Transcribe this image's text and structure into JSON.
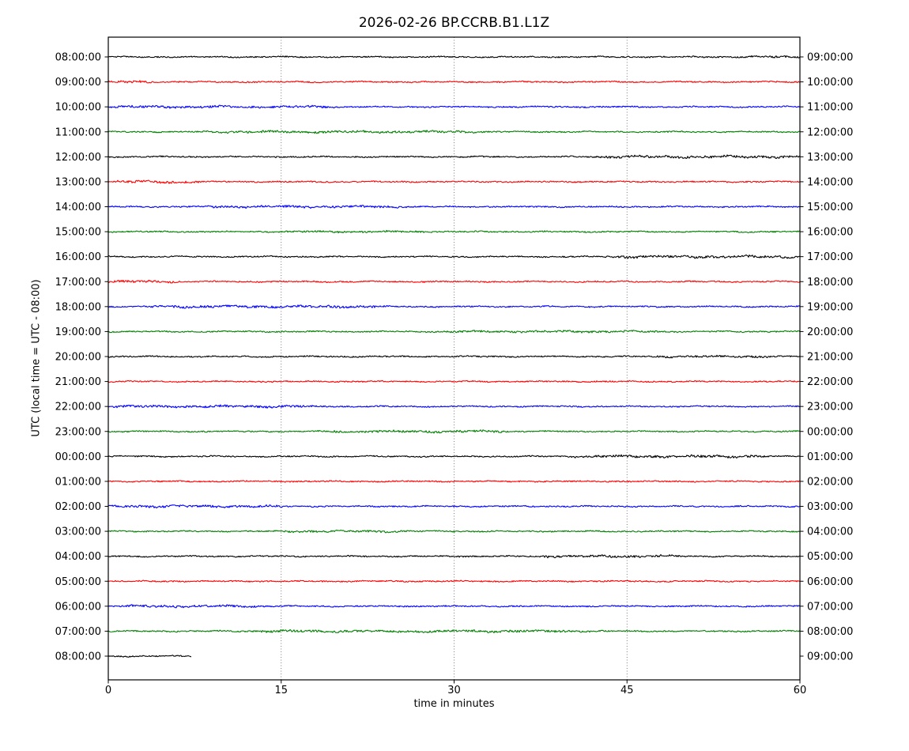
{
  "figure": {
    "title": "2026-02-26 BP.CCRB.B1.L1Z",
    "xlabel": "time in minutes",
    "ylabel": "UTC (local time = UTC - 08:00)"
  },
  "chart_data": {
    "type": "line",
    "subtype": "seismic-helicorder-dayplot",
    "title": "2026-02-26 BP.CCRB.B1.L1Z",
    "xlabel": "time in minutes",
    "ylabel": "UTC (local time = UTC - 08:00)",
    "xlim": [
      0,
      60
    ],
    "x_ticks": [
      0,
      15,
      30,
      45,
      60
    ],
    "grid": {
      "style": "dotted-vertical",
      "at_minutes": [
        15,
        30,
        45
      ]
    },
    "minutes_per_row": 60,
    "color_cycle": [
      "#000000",
      "#ff0000",
      "#0000ff",
      "#008000"
    ],
    "left_axis": "UTC start time of each line",
    "right_axis": "time at end of each line",
    "rows": [
      {
        "utc": "08:00:00",
        "local": "09:00:00",
        "color": "#000000",
        "start_min": 0,
        "end_min": 60,
        "bursts": [
          [
            55,
            60,
            1.7
          ]
        ]
      },
      {
        "utc": "09:00:00",
        "local": "10:00:00",
        "color": "#ff0000",
        "start_min": 0,
        "end_min": 60,
        "bursts": [
          [
            0,
            4,
            1.8
          ]
        ]
      },
      {
        "utc": "10:00:00",
        "local": "11:00:00",
        "color": "#0000ff",
        "start_min": 0,
        "end_min": 60,
        "bursts": [
          [
            0,
            20,
            1.7
          ]
        ]
      },
      {
        "utc": "11:00:00",
        "local": "12:00:00",
        "color": "#008000",
        "start_min": 0,
        "end_min": 60,
        "bursts": [
          [
            8,
            32,
            1.7
          ]
        ]
      },
      {
        "utc": "12:00:00",
        "local": "13:00:00",
        "color": "#000000",
        "start_min": 0,
        "end_min": 60,
        "bursts": [
          [
            42,
            60,
            1.9
          ]
        ]
      },
      {
        "utc": "13:00:00",
        "local": "14:00:00",
        "color": "#ff0000",
        "start_min": 0,
        "end_min": 60,
        "bursts": [
          [
            0,
            8,
            2.0
          ]
        ]
      },
      {
        "utc": "14:00:00",
        "local": "15:00:00",
        "color": "#0000ff",
        "start_min": 0,
        "end_min": 60,
        "bursts": [
          [
            8,
            26,
            1.7
          ]
        ]
      },
      {
        "utc": "15:00:00",
        "local": "16:00:00",
        "color": "#008000",
        "start_min": 0,
        "end_min": 60,
        "bursts": [
          [
            15,
            28,
            1.4
          ]
        ]
      },
      {
        "utc": "16:00:00",
        "local": "17:00:00",
        "color": "#000000",
        "start_min": 0,
        "end_min": 60,
        "bursts": [
          [
            43,
            60,
            1.9
          ]
        ]
      },
      {
        "utc": "17:00:00",
        "local": "18:00:00",
        "color": "#ff0000",
        "start_min": 0,
        "end_min": 60,
        "bursts": [
          [
            0,
            6,
            1.9
          ]
        ]
      },
      {
        "utc": "18:00:00",
        "local": "19:00:00",
        "color": "#0000ff",
        "start_min": 0,
        "end_min": 60,
        "bursts": [
          [
            3,
            24,
            1.8
          ]
        ]
      },
      {
        "utc": "19:00:00",
        "local": "20:00:00",
        "color": "#008000",
        "start_min": 0,
        "end_min": 60,
        "bursts": [
          [
            28,
            48,
            1.5
          ]
        ]
      },
      {
        "utc": "20:00:00",
        "local": "21:00:00",
        "color": "#000000",
        "start_min": 0,
        "end_min": 60,
        "bursts": [
          [
            47,
            58,
            1.5
          ]
        ]
      },
      {
        "utc": "21:00:00",
        "local": "22:00:00",
        "color": "#ff0000",
        "start_min": 0,
        "end_min": 60,
        "bursts": []
      },
      {
        "utc": "22:00:00",
        "local": "23:00:00",
        "color": "#0000ff",
        "start_min": 0,
        "end_min": 60,
        "bursts": [
          [
            0,
            18,
            1.7
          ]
        ]
      },
      {
        "utc": "23:00:00",
        "local": "00:00:00",
        "color": "#008000",
        "start_min": 0,
        "end_min": 60,
        "bursts": [
          [
            18,
            35,
            1.7
          ]
        ]
      },
      {
        "utc": "00:00:00",
        "local": "01:00:00",
        "color": "#000000",
        "start_min": 0,
        "end_min": 60,
        "bursts": [
          [
            40,
            57,
            1.9
          ]
        ]
      },
      {
        "utc": "01:00:00",
        "local": "02:00:00",
        "color": "#ff0000",
        "start_min": 0,
        "end_min": 60,
        "bursts": []
      },
      {
        "utc": "02:00:00",
        "local": "03:00:00",
        "color": "#0000ff",
        "start_min": 0,
        "end_min": 60,
        "bursts": [
          [
            0,
            16,
            1.7
          ]
        ]
      },
      {
        "utc": "03:00:00",
        "local": "04:00:00",
        "color": "#008000",
        "start_min": 0,
        "end_min": 60,
        "bursts": [
          [
            14,
            26,
            1.5
          ]
        ]
      },
      {
        "utc": "04:00:00",
        "local": "05:00:00",
        "color": "#000000",
        "start_min": 0,
        "end_min": 60,
        "bursts": [
          [
            37,
            50,
            1.8
          ]
        ]
      },
      {
        "utc": "05:00:00",
        "local": "06:00:00",
        "color": "#ff0000",
        "start_min": 0,
        "end_min": 60,
        "bursts": []
      },
      {
        "utc": "06:00:00",
        "local": "07:00:00",
        "color": "#0000ff",
        "start_min": 0,
        "end_min": 60,
        "bursts": [
          [
            0,
            14,
            1.7
          ]
        ]
      },
      {
        "utc": "07:00:00",
        "local": "08:00:00",
        "color": "#008000",
        "start_min": 0,
        "end_min": 60,
        "bursts": [
          [
            12,
            42,
            1.7
          ]
        ]
      },
      {
        "utc": "08:00:00",
        "local": "09:00:00",
        "color": "#000000",
        "start_min": 0,
        "end_min": 7.2,
        "bursts": []
      }
    ]
  }
}
